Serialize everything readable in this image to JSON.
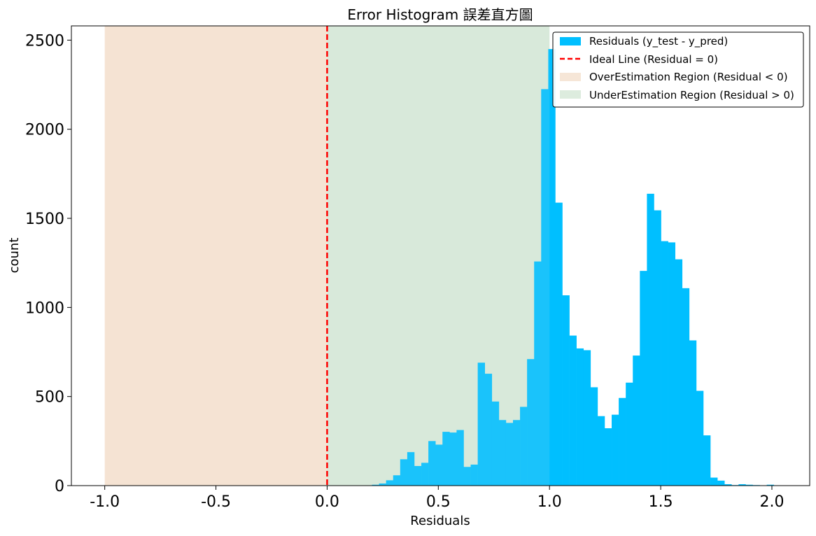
{
  "chart_data": {
    "type": "bar",
    "title": "Error Histogram 誤差直方圖",
    "xlabel": "Residuals",
    "ylabel": "count",
    "xlim": [
      -1.15,
      2.17
    ],
    "ylim": [
      0,
      2580
    ],
    "grid": false,
    "legend_position": "top-right",
    "x_ticks": [
      -1.0,
      -0.5,
      0.0,
      0.5,
      1.0,
      1.5,
      2.0
    ],
    "x_tick_labels": [
      "-1.0",
      "-0.5",
      "0.0",
      "0.5",
      "1.0",
      "1.5",
      "2.0"
    ],
    "y_ticks": [
      0,
      500,
      1000,
      1500,
      2000,
      2500
    ],
    "y_tick_labels": [
      "0",
      "500",
      "1000",
      "1500",
      "2000",
      "2500"
    ],
    "bin_width": 0.0317,
    "bin_start": 0.17,
    "series": [
      {
        "name": "Residuals (y_test - y_pred)",
        "color": "#00bfff",
        "values": [
          2,
          5,
          12,
          30,
          58,
          148,
          188,
          110,
          128,
          250,
          230,
          302,
          298,
          312,
          105,
          118,
          690,
          628,
          472,
          368,
          352,
          368,
          442,
          710,
          1258,
          2225,
          2450,
          1588,
          1068,
          842,
          770,
          760,
          552,
          390,
          322,
          398,
          492,
          578,
          730,
          1205,
          1638,
          1545,
          1372,
          1365,
          1270,
          1108,
          815,
          532,
          282,
          45,
          28,
          8,
          3,
          8,
          5,
          3,
          2,
          5,
          2
        ]
      }
    ],
    "ideal_line": {
      "name": "Ideal Line (Residual = 0)",
      "x": 0,
      "color": "#ff0000"
    },
    "regions": [
      {
        "name": "OverEstimation Region (Residual < 0)",
        "x_range": [
          -1.0,
          0.0
        ],
        "color": "#f5e3d3"
      },
      {
        "name": "UnderEstimation Region (Residual > 0)",
        "x_range": [
          0.0,
          1.0
        ],
        "color": "#d9eada"
      }
    ]
  }
}
